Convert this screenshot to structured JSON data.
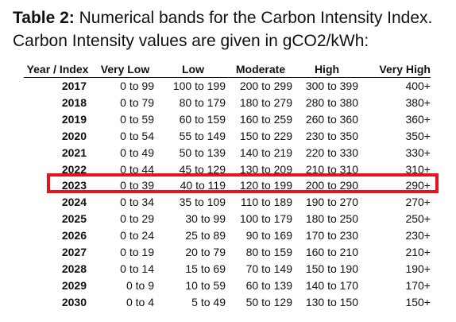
{
  "caption": {
    "label": "Table 2:",
    "line1_rest": " Numerical bands for the Carbon Intensity Index.",
    "line2": "Carbon Intensity values are given in gCO2/kWh:"
  },
  "table": {
    "headers": [
      "Year / Index",
      "Very Low",
      "Low",
      "Moderate",
      "High",
      "Very High"
    ],
    "rows": [
      [
        "2017",
        "0 to 99",
        "100 to 199",
        "200 to 299",
        "300 to 399",
        "400+"
      ],
      [
        "2018",
        "0 to 79",
        "80 to 179",
        "180 to 279",
        "280 to 380",
        "380+"
      ],
      [
        "2019",
        "0 to 59",
        "60 to 159",
        "160 to 259",
        "260 to 360",
        "360+"
      ],
      [
        "2020",
        "0 to 54",
        "55 to 149",
        "150 to 229",
        "230 to 350",
        "350+"
      ],
      [
        "2021",
        "0 to 49",
        "50 to 139",
        "140 to 219",
        "220 to 330",
        "330+"
      ],
      [
        "2022",
        "0 to 44",
        "45 to 129",
        "130 to 209",
        "210 to 310",
        "310+"
      ],
      [
        "2023",
        "0 to 39",
        "40 to 119",
        "120 to 199",
        "200 to 290",
        "290+"
      ],
      [
        "2024",
        "0 to 34",
        "35 to 109",
        "110 to 189",
        "190 to 270",
        "270+"
      ],
      [
        "2025",
        "0 to 29",
        "30 to 99",
        "100 to 179",
        "180 to 250",
        "250+"
      ],
      [
        "2026",
        "0 to 24",
        "25 to 89",
        "90 to 169",
        "170 to 230",
        "230+"
      ],
      [
        "2027",
        "0 to 19",
        "20 to 79",
        "80 to 159",
        "160 to 210",
        "210+"
      ],
      [
        "2028",
        "0 to 14",
        "15 to 69",
        "70 to 149",
        "150 to 190",
        "190+"
      ],
      [
        "2029",
        "0 to 9",
        "10 to 59",
        "60 to 139",
        "140 to 170",
        "170+"
      ],
      [
        "2030",
        "0 to 4",
        "5 to 49",
        "50 to 129",
        "130 to 150",
        "150+"
      ]
    ],
    "highlighted_row": "2023"
  },
  "colors": {
    "highlight": "#e5141c",
    "text": "#111111"
  }
}
